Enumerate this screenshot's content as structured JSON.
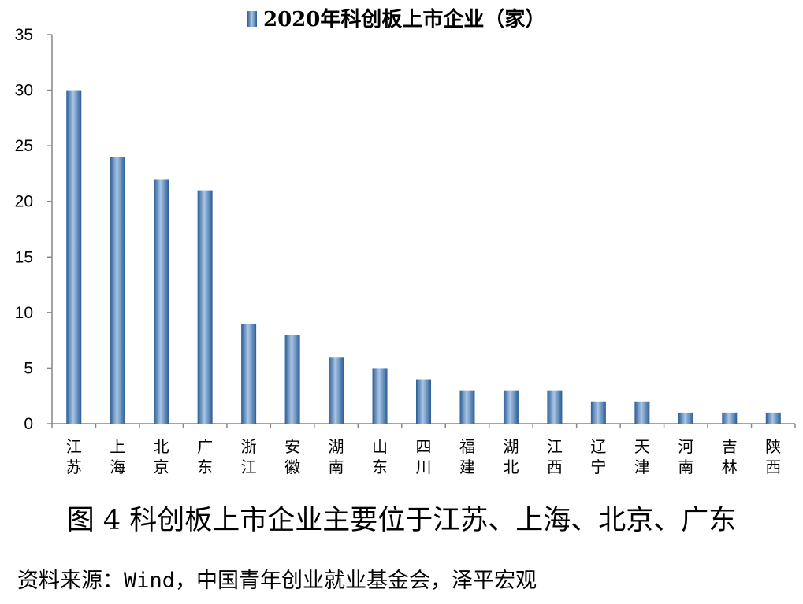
{
  "chart_data": {
    "type": "bar",
    "categories": [
      "江苏",
      "上海",
      "北京",
      "广东",
      "浙江",
      "安徽",
      "湖南",
      "山东",
      "四川",
      "福建",
      "湖北",
      "江西",
      "辽宁",
      "天津",
      "河南",
      "吉林",
      "陕西"
    ],
    "series": [
      {
        "name": "2020年科创板上市企业（家）",
        "values": [
          30,
          24,
          22,
          21,
          9,
          8,
          6,
          5,
          4,
          3,
          3,
          3,
          2,
          2,
          1,
          1,
          1
        ]
      }
    ],
    "ylim": [
      0,
      35
    ],
    "yticks": [
      0,
      5,
      10,
      15,
      20,
      25,
      30,
      35
    ],
    "legend_position": "top",
    "grid": false,
    "bar_color": "#4f81bd"
  },
  "caption": "图 4  科创板上市企业主要位于江苏、上海、北京、广东",
  "source": "资料来源：Wind，中国青年创业就业基金会，泽平宏观"
}
